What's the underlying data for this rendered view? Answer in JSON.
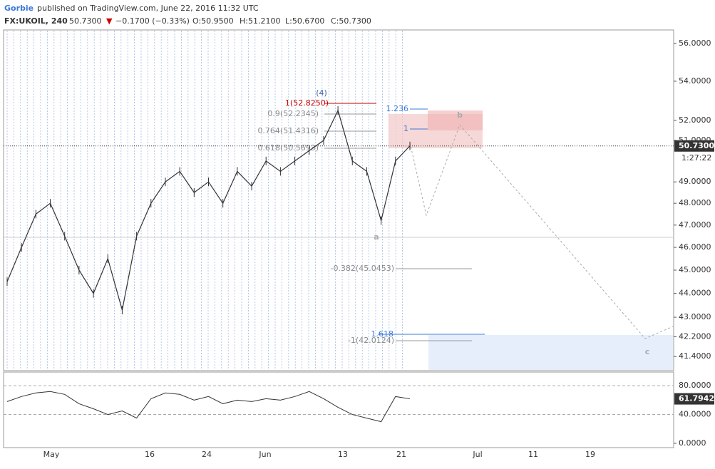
{
  "header": {
    "author": "Gorbie",
    "published": "published on TradingView.com, June 22, 2016 11:32 UTC",
    "symbol": "FX:UKOIL, 240",
    "last": "50.7300",
    "change": "−0.1700 (−0.33%)",
    "open": "O:50.9500",
    "high": "H:51.2100",
    "low": "L:50.6700",
    "close": "C:50.7300"
  },
  "price_chart": {
    "log_scale": true,
    "ylim": [
      40.84,
      56.74
    ],
    "yticks": [
      {
        "value": 56,
        "label": "56.0000"
      },
      {
        "value": 54,
        "label": "54.0000"
      },
      {
        "value": 52,
        "label": "52.0000"
      },
      {
        "value": 51,
        "label": "51.0000"
      },
      {
        "value": 49,
        "label": "49.0000"
      },
      {
        "value": 48,
        "label": "48.0000"
      },
      {
        "value": 47,
        "label": "47.0000"
      },
      {
        "value": 46,
        "label": "46.0000"
      },
      {
        "value": 45,
        "label": "45.0000"
      },
      {
        "value": 44,
        "label": "44.0000"
      },
      {
        "value": 43,
        "label": "43.0000"
      },
      {
        "value": 42.2,
        "label": "42.2000"
      },
      {
        "value": 41.4,
        "label": "41.4000"
      }
    ],
    "closes": [
      44.5,
      46,
      47.5,
      48,
      46.5,
      45,
      44,
      45.5,
      43.3,
      46.5,
      48,
      49,
      49.5,
      48.5,
      49,
      48,
      49.5,
      48.8,
      50,
      49.5,
      50,
      50.5,
      51,
      52.5,
      50,
      49.5,
      47.2,
      50,
      50.73
    ],
    "current": {
      "value": 50.73,
      "label": "50.7300"
    },
    "countdown": "1:27:22",
    "annotations": [
      "(4)",
      "1(52.8250)",
      "0.9(52.2345)",
      "0.764(51.4316)",
      "0.618(50.5693)",
      "-0.382(45.0453)",
      "-1(42.0124)",
      "1.236",
      "1",
      "1.618",
      "a",
      "b",
      "c"
    ]
  },
  "rsi_chart": {
    "ylim": [
      -6,
      99
    ],
    "yticks": [
      {
        "value": 80,
        "label": "80.0000"
      },
      {
        "value": 40,
        "label": "40.0000"
      },
      {
        "value": 0,
        "label": "0.0000"
      }
    ],
    "values": [
      58,
      65,
      70,
      72,
      68,
      55,
      48,
      40,
      45,
      35,
      62,
      70,
      68,
      60,
      65,
      55,
      60,
      58,
      62,
      60,
      65,
      72,
      62,
      50,
      40,
      35,
      30,
      65,
      61.79
    ],
    "current": {
      "value": 61.7942,
      "label": "61.7942"
    }
  },
  "x_axis": [
    "May",
    "16",
    "24",
    "Jun",
    "13",
    "21",
    "Jul",
    "11",
    "19"
  ]
}
